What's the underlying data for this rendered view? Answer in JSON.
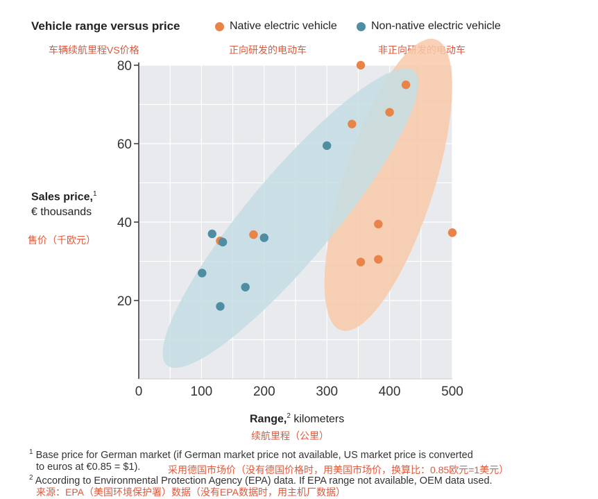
{
  "chart_data": {
    "type": "scatter",
    "title": "Vehicle range versus price",
    "title_cn": "车辆续航里程VS价格",
    "xlabel_bold": "Range,",
    "xlabel_sup": "2",
    "xlabel_rest": " kilometers",
    "xlabel_cn": "续航里程（公里）",
    "ylabel_bold": "Sales price,",
    "ylabel_sup": "1",
    "ylabel_line2": "€ thousands",
    "ylabel_cn": "售价（千欧元）",
    "xlim": [
      0,
      500
    ],
    "ylim": [
      0,
      80
    ],
    "xticks": [
      0,
      100,
      200,
      300,
      400,
      500
    ],
    "yticks": [
      20,
      40,
      60,
      80
    ],
    "grid": true,
    "legend_position": "top",
    "series": [
      {
        "name": "Native electric vehicle",
        "name_cn": "正向研发的电动车",
        "color": "#e8834a",
        "points": [
          {
            "x": 354,
            "y": 80
          },
          {
            "x": 426,
            "y": 75
          },
          {
            "x": 400,
            "y": 68
          },
          {
            "x": 340,
            "y": 65
          },
          {
            "x": 382,
            "y": 39.5
          },
          {
            "x": 500,
            "y": 37.3
          },
          {
            "x": 183,
            "y": 36.8
          },
          {
            "x": 130,
            "y": 35.2
          },
          {
            "x": 382,
            "y": 30.5
          },
          {
            "x": 354,
            "y": 29.8
          }
        ]
      },
      {
        "name": "Non-native electric vehicle",
        "name_cn": "非正向研发的电动车",
        "color": "#4f8da3",
        "points": [
          {
            "x": 300,
            "y": 59.5
          },
          {
            "x": 117,
            "y": 37
          },
          {
            "x": 200,
            "y": 36
          },
          {
            "x": 134,
            "y": 34.9
          },
          {
            "x": 101,
            "y": 27
          },
          {
            "x": 170,
            "y": 23.4
          },
          {
            "x": 130,
            "y": 18.5
          }
        ]
      }
    ],
    "clusters": [
      {
        "series": "Native electric vehicle",
        "color": "#f7c9a9",
        "cx": 398,
        "cy": 49.5,
        "rx": 72,
        "ry": 39,
        "rotate_deg": 18
      },
      {
        "series": "Non-native electric vehicle",
        "color": "#c4dde3",
        "cx": 242,
        "cy": 41,
        "rx": 69,
        "ry": 49,
        "rotate_deg": 40
      }
    ]
  },
  "footnotes": {
    "fn1_num": "1",
    "fn1_line1": "Base price for German market (if German market price not available, US market price is converted",
    "fn1_line2": "to euros at €0.85 = $1).",
    "fn1_cn": "采用德国市场价（没有德国价格时，用美国市场价，换算比：0.85欧元=1美元）",
    "fn2_num": "2",
    "fn2_line1": "According to Environmental Protection Agency (EPA) data. If EPA range not available, OEM data used.",
    "fn2_cn": "来源：EPA（美国环境保护署）数据（没有EPA数据时，用主机厂数据）"
  }
}
